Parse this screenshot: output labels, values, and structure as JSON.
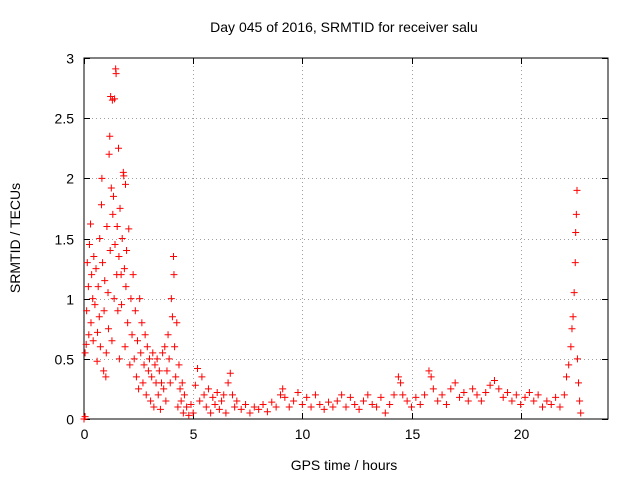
{
  "chart_data": {
    "type": "scatter",
    "title": "Day 045 of 2016, SRMTID for receiver salu",
    "xlabel": "GPS time / hours",
    "ylabel": "SRMTID / TECUs",
    "xlim": [
      0,
      24
    ],
    "ylim": [
      0,
      3
    ],
    "xticks": [
      0,
      5,
      10,
      15,
      20
    ],
    "xtick_labels": [
      "0",
      "5",
      "10",
      "15",
      "20"
    ],
    "yticks": [
      0,
      0.5,
      1,
      1.5,
      2,
      2.5,
      3
    ],
    "ytick_labels": [
      "0",
      "0.5",
      "1",
      "1.5",
      "2",
      "2.5",
      "3"
    ],
    "grid": true,
    "marker": "+",
    "series": [
      {
        "name": "SRMTID",
        "color": "#ff0000",
        "points": [
          [
            0.0,
            0.0
          ],
          [
            0.05,
            0.02
          ],
          [
            0.05,
            0.55
          ],
          [
            0.1,
            0.62
          ],
          [
            0.12,
            0.9
          ],
          [
            0.15,
            1.3
          ],
          [
            0.2,
            1.1
          ],
          [
            0.22,
            0.7
          ],
          [
            0.25,
            1.45
          ],
          [
            0.3,
            1.62
          ],
          [
            0.32,
            0.8
          ],
          [
            0.35,
            1.2
          ],
          [
            0.4,
            1.0
          ],
          [
            0.42,
            0.65
          ],
          [
            0.45,
            1.35
          ],
          [
            0.5,
            0.95
          ],
          [
            0.55,
            1.25
          ],
          [
            0.6,
            0.48
          ],
          [
            0.62,
            0.72
          ],
          [
            0.65,
            1.1
          ],
          [
            0.7,
            0.85
          ],
          [
            0.72,
            1.5
          ],
          [
            0.75,
            0.6
          ],
          [
            0.8,
            1.78
          ],
          [
            0.82,
            2.0
          ],
          [
            0.85,
            1.3
          ],
          [
            0.9,
            0.4
          ],
          [
            0.92,
            0.9
          ],
          [
            0.95,
            1.15
          ],
          [
            1.0,
            0.35
          ],
          [
            1.02,
            0.55
          ],
          [
            1.05,
            1.6
          ],
          [
            1.1,
            1.05
          ],
          [
            1.12,
            0.75
          ],
          [
            1.15,
            2.2
          ],
          [
            1.18,
            2.35
          ],
          [
            1.2,
            1.4
          ],
          [
            1.22,
            2.68
          ],
          [
            1.25,
            1.92
          ],
          [
            1.28,
            0.65
          ],
          [
            1.3,
            2.65
          ],
          [
            1.32,
            1.7
          ],
          [
            1.35,
            1.85
          ],
          [
            1.38,
            1.0
          ],
          [
            1.4,
            2.66
          ],
          [
            1.42,
            1.45
          ],
          [
            1.45,
            2.91
          ],
          [
            1.47,
            2.87
          ],
          [
            1.5,
            1.2
          ],
          [
            1.52,
            1.6
          ],
          [
            1.55,
            0.9
          ],
          [
            1.58,
            2.25
          ],
          [
            1.6,
            1.35
          ],
          [
            1.62,
            0.5
          ],
          [
            1.65,
            1.75
          ],
          [
            1.7,
            1.2
          ],
          [
            1.72,
            0.95
          ],
          [
            1.75,
            1.5
          ],
          [
            1.8,
            2.05
          ],
          [
            1.82,
            2.02
          ],
          [
            1.85,
            1.25
          ],
          [
            1.88,
            0.6
          ],
          [
            1.9,
            1.95
          ],
          [
            1.92,
            1.1
          ],
          [
            1.95,
            1.4
          ],
          [
            2.0,
            0.8
          ],
          [
            2.05,
            1.58
          ],
          [
            2.1,
            0.45
          ],
          [
            2.15,
            1.0
          ],
          [
            2.2,
            0.7
          ],
          [
            2.25,
            1.2
          ],
          [
            2.3,
            0.5
          ],
          [
            2.35,
            0.9
          ],
          [
            2.4,
            0.35
          ],
          [
            2.45,
            0.65
          ],
          [
            2.5,
            0.25
          ],
          [
            2.55,
            1.0
          ],
          [
            2.6,
            0.55
          ],
          [
            2.65,
            0.8
          ],
          [
            2.7,
            0.3
          ],
          [
            2.75,
            0.45
          ],
          [
            2.8,
            0.7
          ],
          [
            2.85,
            0.2
          ],
          [
            2.9,
            0.6
          ],
          [
            2.95,
            0.4
          ],
          [
            3.0,
            0.5
          ],
          [
            3.05,
            0.15
          ],
          [
            3.1,
            0.35
          ],
          [
            3.15,
            0.55
          ],
          [
            3.2,
            0.1
          ],
          [
            3.25,
            0.45
          ],
          [
            3.3,
            0.3
          ],
          [
            3.35,
            0.5
          ],
          [
            3.4,
            0.2
          ],
          [
            3.45,
            0.4
          ],
          [
            3.5,
            0.08
          ],
          [
            3.55,
            0.3
          ],
          [
            3.6,
            0.55
          ],
          [
            3.65,
            0.25
          ],
          [
            3.7,
            0.6
          ],
          [
            3.75,
            0.15
          ],
          [
            3.8,
            0.4
          ],
          [
            3.85,
            0.7
          ],
          [
            3.9,
            0.5
          ],
          [
            3.95,
            0.3
          ],
          [
            4.0,
            1.0
          ],
          [
            4.05,
            0.85
          ],
          [
            4.1,
            1.35
          ],
          [
            4.12,
            1.2
          ],
          [
            4.15,
            0.6
          ],
          [
            4.2,
            0.35
          ],
          [
            4.25,
            0.8
          ],
          [
            4.3,
            0.1
          ],
          [
            4.35,
            0.45
          ],
          [
            4.4,
            0.25
          ],
          [
            4.45,
            0.15
          ],
          [
            4.5,
            0.3
          ],
          [
            4.55,
            0.05
          ],
          [
            4.6,
            0.2
          ],
          [
            4.7,
            0.1
          ],
          [
            4.8,
            0.03
          ],
          [
            4.9,
            0.12
          ],
          [
            5.0,
            0.05
          ],
          [
            5.1,
            0.28
          ],
          [
            5.2,
            0.42
          ],
          [
            5.3,
            0.15
          ],
          [
            5.4,
            0.35
          ],
          [
            5.5,
            0.2
          ],
          [
            5.6,
            0.1
          ],
          [
            5.7,
            0.25
          ],
          [
            5.8,
            0.05
          ],
          [
            5.9,
            0.18
          ],
          [
            6.0,
            0.12
          ],
          [
            6.1,
            0.22
          ],
          [
            6.2,
            0.08
          ],
          [
            6.3,
            0.15
          ],
          [
            6.4,
            0.2
          ],
          [
            6.5,
            0.05
          ],
          [
            6.6,
            0.3
          ],
          [
            6.7,
            0.38
          ],
          [
            6.8,
            0.2
          ],
          [
            6.9,
            0.1
          ],
          [
            7.0,
            0.15
          ],
          [
            7.2,
            0.08
          ],
          [
            7.4,
            0.12
          ],
          [
            7.6,
            0.05
          ],
          [
            7.8,
            0.1
          ],
          [
            8.0,
            0.08
          ],
          [
            8.2,
            0.12
          ],
          [
            8.4,
            0.06
          ],
          [
            8.6,
            0.14
          ],
          [
            8.8,
            0.1
          ],
          [
            9.0,
            0.2
          ],
          [
            9.1,
            0.25
          ],
          [
            9.2,
            0.18
          ],
          [
            9.4,
            0.1
          ],
          [
            9.6,
            0.15
          ],
          [
            9.8,
            0.22
          ],
          [
            10.0,
            0.12
          ],
          [
            10.2,
            0.18
          ],
          [
            10.4,
            0.1
          ],
          [
            10.6,
            0.2
          ],
          [
            10.8,
            0.12
          ],
          [
            11.0,
            0.08
          ],
          [
            11.2,
            0.14
          ],
          [
            11.4,
            0.1
          ],
          [
            11.6,
            0.15
          ],
          [
            11.8,
            0.2
          ],
          [
            12.0,
            0.1
          ],
          [
            12.2,
            0.18
          ],
          [
            12.4,
            0.12
          ],
          [
            12.6,
            0.08
          ],
          [
            12.8,
            0.15
          ],
          [
            13.0,
            0.2
          ],
          [
            13.2,
            0.12
          ],
          [
            13.4,
            0.1
          ],
          [
            13.6,
            0.18
          ],
          [
            13.8,
            0.05
          ],
          [
            14.0,
            0.12
          ],
          [
            14.2,
            0.2
          ],
          [
            14.4,
            0.35
          ],
          [
            14.5,
            0.3
          ],
          [
            14.6,
            0.2
          ],
          [
            14.8,
            0.15
          ],
          [
            15.0,
            0.1
          ],
          [
            15.2,
            0.18
          ],
          [
            15.4,
            0.12
          ],
          [
            15.6,
            0.2
          ],
          [
            15.8,
            0.4
          ],
          [
            15.9,
            0.35
          ],
          [
            16.0,
            0.25
          ],
          [
            16.2,
            0.15
          ],
          [
            16.4,
            0.2
          ],
          [
            16.6,
            0.12
          ],
          [
            16.8,
            0.25
          ],
          [
            17.0,
            0.3
          ],
          [
            17.2,
            0.18
          ],
          [
            17.4,
            0.22
          ],
          [
            17.6,
            0.15
          ],
          [
            17.8,
            0.25
          ],
          [
            18.0,
            0.2
          ],
          [
            18.2,
            0.15
          ],
          [
            18.4,
            0.22
          ],
          [
            18.6,
            0.28
          ],
          [
            18.8,
            0.32
          ],
          [
            19.0,
            0.25
          ],
          [
            19.2,
            0.18
          ],
          [
            19.4,
            0.22
          ],
          [
            19.6,
            0.15
          ],
          [
            19.8,
            0.2
          ],
          [
            20.0,
            0.12
          ],
          [
            20.2,
            0.18
          ],
          [
            20.4,
            0.22
          ],
          [
            20.6,
            0.15
          ],
          [
            20.8,
            0.2
          ],
          [
            21.0,
            0.1
          ],
          [
            21.2,
            0.15
          ],
          [
            21.4,
            0.12
          ],
          [
            21.6,
            0.18
          ],
          [
            21.8,
            0.1
          ],
          [
            22.0,
            0.2
          ],
          [
            22.1,
            0.35
          ],
          [
            22.2,
            0.45
          ],
          [
            22.3,
            0.6
          ],
          [
            22.35,
            0.75
          ],
          [
            22.4,
            0.85
          ],
          [
            22.45,
            1.05
          ],
          [
            22.5,
            1.3
          ],
          [
            22.52,
            1.55
          ],
          [
            22.55,
            1.7
          ],
          [
            22.58,
            1.9
          ],
          [
            22.6,
            0.5
          ],
          [
            22.65,
            0.3
          ],
          [
            22.7,
            0.15
          ],
          [
            22.75,
            0.05
          ]
        ]
      }
    ]
  }
}
